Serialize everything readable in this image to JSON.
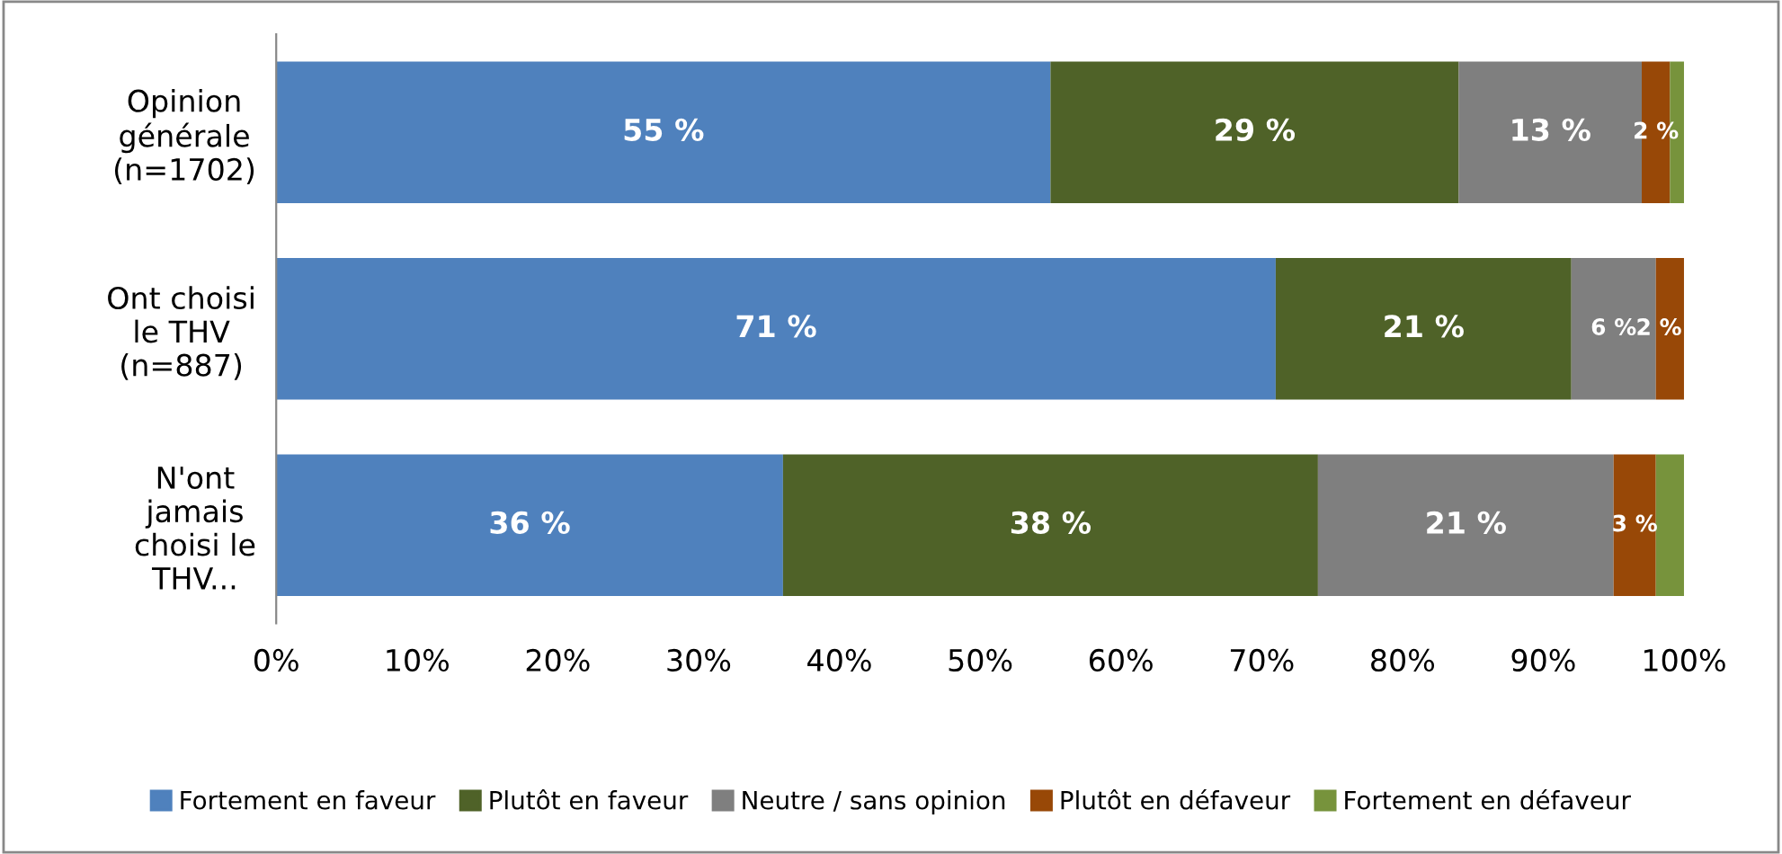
{
  "chart_data": {
    "type": "bar",
    "orientation": "horizontal",
    "stacked": true,
    "categories": [
      "Opinion\ngénérale\n(n=1702)",
      "Ont choisi\nle THV\n(n=887)",
      "N'ont\njamais\nchoisi le\nTHV..."
    ],
    "series": [
      {
        "name": "Fortement en faveur",
        "color": "#4f81bd",
        "values": [
          55,
          71,
          36
        ],
        "value_labels": [
          "55 %",
          "71 %",
          "36 %"
        ]
      },
      {
        "name": "Plutôt en faveur",
        "color": "#4f6228",
        "values": [
          29,
          21,
          38
        ],
        "value_labels": [
          "29 %",
          "21 %",
          "38 %"
        ]
      },
      {
        "name": "Neutre / sans opinion",
        "color": "#7f7f7f",
        "values": [
          13,
          6,
          21
        ],
        "value_labels": [
          "13 %",
          "6 %",
          "21 %"
        ]
      },
      {
        "name": "Plutôt en défaveur",
        "color": "#984807",
        "values": [
          2,
          2,
          3
        ],
        "value_labels": [
          "2 %",
          "2 %",
          "3 %"
        ]
      },
      {
        "name": "Fortement en défaveur",
        "color": "#77933c",
        "values": [
          1,
          null,
          2
        ],
        "value_labels": [
          null,
          null,
          null
        ]
      }
    ],
    "xlim": [
      0,
      100
    ],
    "xticks": [
      {
        "value": 0,
        "label": "0%"
      },
      {
        "value": 10,
        "label": "10%"
      },
      {
        "value": 20,
        "label": "20%"
      },
      {
        "value": 30,
        "label": "30%"
      },
      {
        "value": 40,
        "label": "40%"
      },
      {
        "value": 50,
        "label": "50%"
      },
      {
        "value": 60,
        "label": "60%"
      },
      {
        "value": 70,
        "label": "70%"
      },
      {
        "value": 80,
        "label": "80%"
      },
      {
        "value": 90,
        "label": "90%"
      },
      {
        "value": 100,
        "label": "100%"
      }
    ],
    "grid": false,
    "legend": "bottom"
  }
}
